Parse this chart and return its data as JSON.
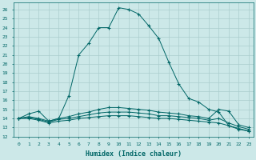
{
  "title": "",
  "xlabel": "Humidex (Indice chaleur)",
  "ylabel": "",
  "background_color": "#cce8e8",
  "grid_color": "#aacccc",
  "line_color": "#006666",
  "xlim": [
    -0.5,
    23.5
  ],
  "ylim": [
    12.0,
    26.8
  ],
  "xticks": [
    0,
    1,
    2,
    3,
    4,
    5,
    6,
    7,
    8,
    9,
    10,
    11,
    12,
    13,
    14,
    15,
    16,
    17,
    18,
    19,
    20,
    21,
    22,
    23
  ],
  "yticks": [
    12,
    13,
    14,
    15,
    16,
    17,
    18,
    19,
    20,
    21,
    22,
    23,
    24,
    25,
    26
  ],
  "line1_x": [
    0,
    1,
    2,
    3,
    4,
    5,
    6,
    7,
    8,
    9,
    10,
    11,
    12,
    13,
    14,
    15,
    16,
    17,
    18,
    19,
    20,
    21,
    22,
    23
  ],
  "line1_y": [
    14.0,
    14.5,
    14.8,
    13.7,
    14.0,
    16.5,
    21.0,
    22.3,
    24.0,
    24.0,
    26.2,
    26.0,
    25.5,
    24.2,
    22.8,
    20.2,
    17.8,
    16.2,
    15.8,
    15.0,
    14.7,
    13.2,
    12.8,
    12.6
  ],
  "line2_x": [
    0,
    1,
    2,
    3,
    4,
    5,
    6,
    7,
    8,
    9,
    10,
    11,
    12,
    13,
    14,
    15,
    16,
    17,
    18,
    19,
    20,
    21,
    22,
    23
  ],
  "line2_y": [
    14.0,
    14.0,
    13.8,
    13.5,
    13.7,
    13.8,
    14.0,
    14.1,
    14.2,
    14.3,
    14.3,
    14.3,
    14.2,
    14.1,
    14.0,
    14.0,
    13.9,
    13.8,
    13.7,
    13.6,
    13.5,
    13.2,
    12.9,
    12.6
  ],
  "line3_x": [
    0,
    1,
    2,
    3,
    4,
    5,
    6,
    7,
    8,
    9,
    10,
    11,
    12,
    13,
    14,
    15,
    16,
    17,
    18,
    19,
    20,
    21,
    22,
    23
  ],
  "line3_y": [
    14.0,
    14.1,
    13.9,
    13.6,
    13.9,
    14.0,
    14.2,
    14.4,
    14.6,
    14.7,
    14.7,
    14.7,
    14.6,
    14.5,
    14.3,
    14.3,
    14.2,
    14.1,
    14.0,
    13.8,
    14.0,
    13.5,
    13.1,
    12.8
  ],
  "line4_x": [
    0,
    1,
    2,
    3,
    4,
    5,
    6,
    7,
    8,
    9,
    10,
    11,
    12,
    13,
    14,
    15,
    16,
    17,
    18,
    19,
    20,
    21,
    22,
    23
  ],
  "line4_y": [
    14.0,
    14.2,
    14.0,
    13.7,
    14.0,
    14.2,
    14.5,
    14.7,
    15.0,
    15.2,
    15.2,
    15.1,
    15.0,
    14.9,
    14.7,
    14.6,
    14.5,
    14.3,
    14.2,
    14.0,
    15.0,
    14.8,
    13.3,
    13.0
  ]
}
